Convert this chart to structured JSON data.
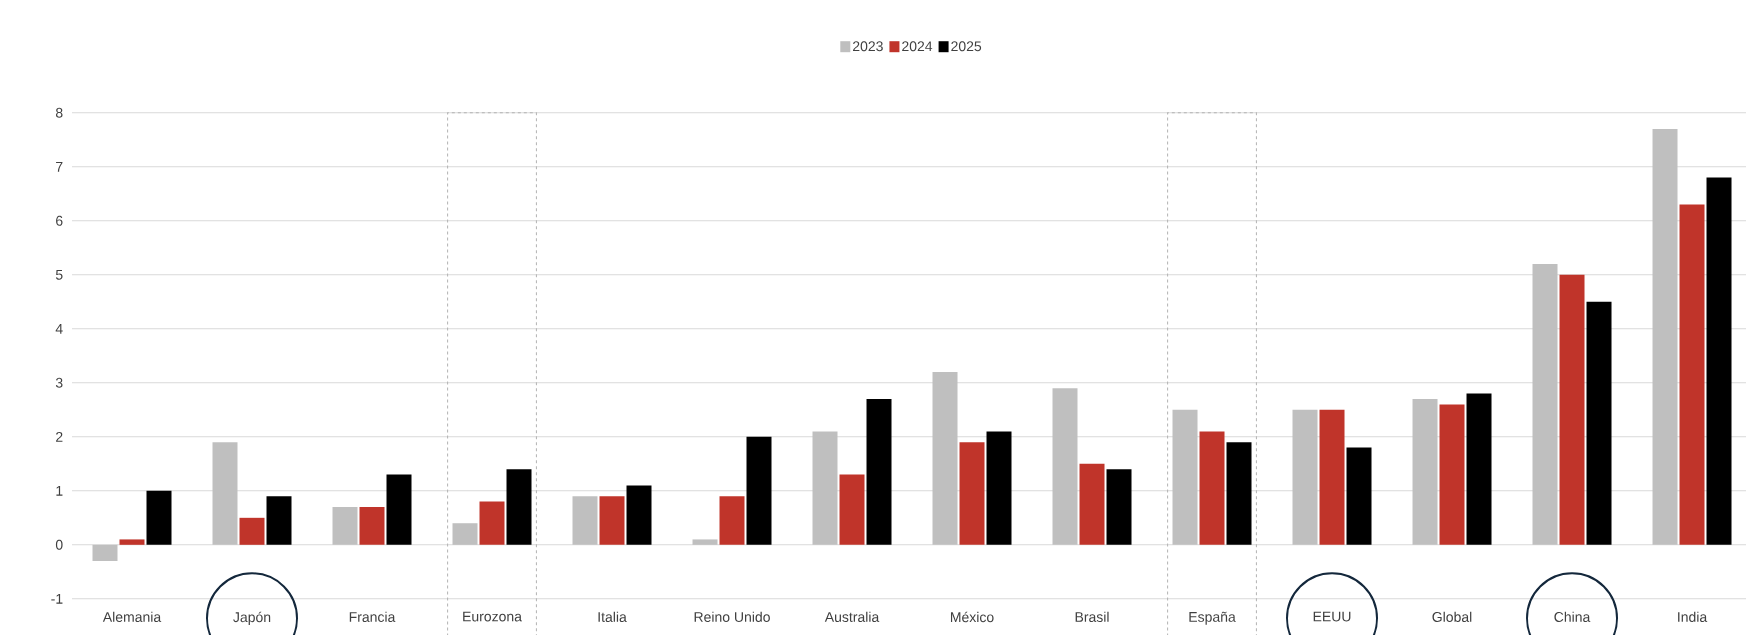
{
  "chart_data": {
    "type": "bar",
    "categories": [
      "Alemania",
      "Japón",
      "Francia",
      "Eurozona",
      "Italia",
      "Reino Unido",
      "Australia",
      "México",
      "Brasil",
      "España",
      "EEUU",
      "Global",
      "China",
      "India"
    ],
    "series": [
      {
        "name": "2023",
        "color": "#bfbfbf",
        "values": [
          -0.3,
          1.9,
          0.7,
          0.4,
          0.9,
          0.1,
          2.1,
          3.2,
          2.9,
          2.5,
          2.5,
          2.7,
          5.2,
          7.7
        ]
      },
      {
        "name": "2024",
        "color": "#c0342a",
        "values": [
          0.1,
          0.5,
          0.7,
          0.8,
          0.9,
          0.9,
          1.3,
          1.9,
          1.5,
          2.1,
          2.5,
          2.6,
          5.0,
          6.3
        ]
      },
      {
        "name": "2025",
        "color": "#000000",
        "values": [
          1.0,
          0.9,
          1.3,
          1.4,
          1.1,
          2.0,
          2.7,
          2.1,
          1.4,
          1.9,
          1.8,
          2.8,
          4.5,
          6.8
        ]
      }
    ],
    "ylim": [
      -1,
      8
    ],
    "yticks": [
      -1,
      0,
      1,
      2,
      3,
      4,
      5,
      6,
      7,
      8
    ],
    "grid": "y",
    "legend": "top"
  }
}
